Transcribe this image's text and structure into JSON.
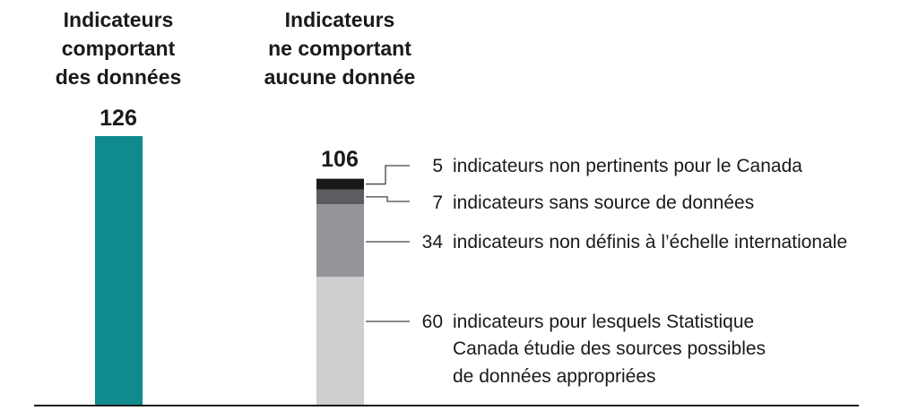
{
  "colors": {
    "teal": "#0f8b8d",
    "black": "#1a1a1a",
    "dark_gray": "#5b5d60",
    "mid_gray": "#939598",
    "light_gray": "#cdcecf"
  },
  "chart_data": {
    "type": "bar",
    "categories": [
      "Indicateurs comportant des données",
      "Indicateurs ne comportant aucune donnée"
    ],
    "bars": [
      {
        "header_lines": [
          "Indicateurs",
          "comportant",
          "des données"
        ],
        "total": 126,
        "total_label": "126",
        "segments": [
          {
            "value": 126,
            "color": "#0f8b8d"
          }
        ]
      },
      {
        "header_lines": [
          "Indicateurs",
          "ne comportant",
          "aucune donnée"
        ],
        "total": 106,
        "total_label": "106",
        "segments": [
          {
            "value": 60,
            "color": "#cdcecf",
            "number": "60",
            "label_lines": [
              "indicateurs pour lesquels Statistique",
              "Canada étudie des sources possibles",
              "de données appropriées"
            ]
          },
          {
            "value": 34,
            "color": "#939598",
            "number": "34",
            "label_lines": [
              "indicateurs non définis à l’échelle internationale"
            ]
          },
          {
            "value": 7,
            "color": "#5b5d60",
            "number": "7",
            "label_lines": [
              "indicateurs sans source de données"
            ]
          },
          {
            "value": 5,
            "color": "#1a1a1a",
            "number": "5",
            "label_lines": [
              "indicateurs non pertinents pour le Canada"
            ]
          }
        ]
      }
    ],
    "ylim": [
      0,
      126
    ],
    "grid": false,
    "legend": "none"
  }
}
